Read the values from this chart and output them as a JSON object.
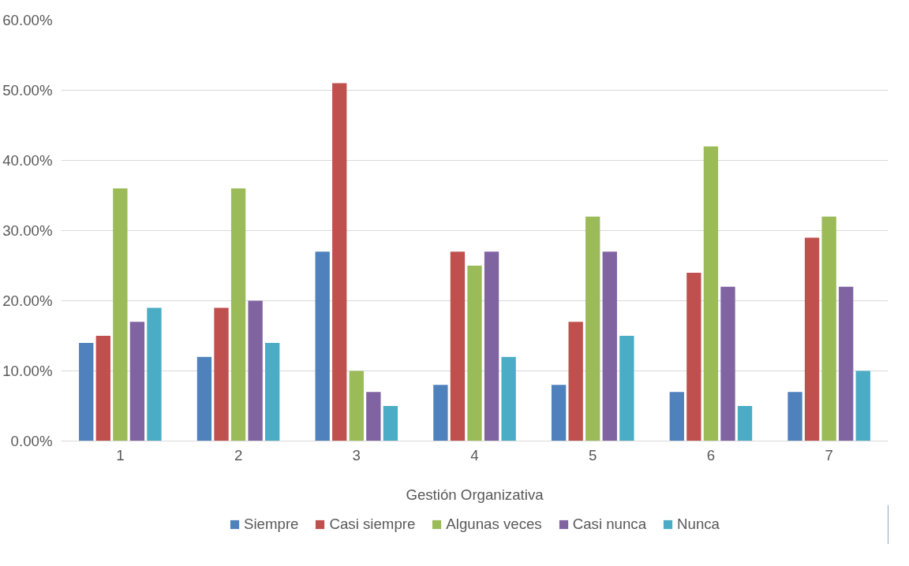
{
  "chart_data": {
    "type": "bar",
    "xlabel": "Gestión Organizativa",
    "categories": [
      "1",
      "2",
      "3",
      "4",
      "5",
      "6",
      "7"
    ],
    "series": [
      {
        "name": "Siempre",
        "color": "#4f81bd",
        "values": [
          14,
          12,
          27,
          8,
          8,
          7,
          7
        ]
      },
      {
        "name": "Casi siempre",
        "color": "#c0504d",
        "values": [
          15,
          19,
          51,
          27,
          17,
          24,
          29
        ]
      },
      {
        "name": "Algunas veces",
        "color": "#9bbb59",
        "values": [
          36,
          36,
          10,
          25,
          32,
          42,
          32
        ]
      },
      {
        "name": "Casi nunca",
        "color": "#8064a2",
        "values": [
          17,
          20,
          7,
          27,
          27,
          22,
          22
        ]
      },
      {
        "name": "Nunca",
        "color": "#4bacc6",
        "values": [
          19,
          14,
          5,
          12,
          15,
          5,
          10
        ]
      }
    ],
    "ylim": [
      0,
      60
    ],
    "yticks": [
      {
        "value": 0,
        "label": "0.00%"
      },
      {
        "value": 10,
        "label": "10.00%"
      },
      {
        "value": 20,
        "label": "20.00%"
      },
      {
        "value": 30,
        "label": "30.00%"
      },
      {
        "value": 40,
        "label": "40.00%"
      },
      {
        "value": 50,
        "label": "50.00%"
      },
      {
        "value": 60,
        "label": "60.00%"
      }
    ],
    "grid": "y",
    "legend": "bottom"
  }
}
